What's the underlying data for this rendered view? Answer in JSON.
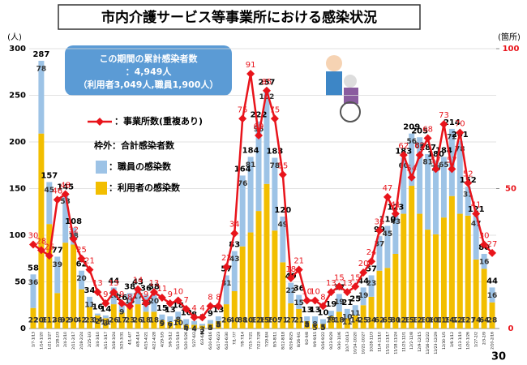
{
  "chart_data": {
    "type": "bar",
    "title": "市内介護サービス等事業所における感染状況",
    "y_label": "(人)",
    "y2_label": "(箇所)",
    "ylim": [
      0,
      300
    ],
    "yticks": [
      0,
      50,
      100,
      150,
      200,
      250,
      300
    ],
    "y2lim": [
      0,
      100
    ],
    "y2ticks": [
      0,
      50,
      100
    ],
    "categories": [
      "1/7-1/13",
      "1/14-1/20",
      "1/21-1/27",
      "1/28-2/3",
      "2/4-2/10",
      "2/11-2/17",
      "2/18-2/24",
      "2/25-3/3",
      "3/4-3/10",
      "3/11-3/17",
      "3/18-3/24",
      "3/25-3/31",
      "4/1-4/7",
      "4/8-4/14",
      "4/15-4/21",
      "4/22-4/28",
      "4/29-5/5",
      "5/6-5/12",
      "5/13-5/19",
      "5/20-5/26",
      "5/27-6/2",
      "6/3-6/9",
      "6/10-6/16",
      "6/17-6/23",
      "6/24-6/30",
      "7/1-7/7",
      "7/8-7/14",
      "7/15-7/21",
      "7/22-7/28",
      "7/29-8/4",
      "8/5-8/11",
      "8/12-8/18",
      "8/19-8/25",
      "8/26-9/1",
      "9/2-9/8",
      "9/9-9/15",
      "9/16-9/22",
      "9/23-9/29",
      "9/30-10/6",
      "10/7-10/13",
      "10/14-10/20",
      "10/21-10/27",
      "10/28-11/3",
      "11/4-11/10",
      "11/11-11/17",
      "11/18-11/24",
      "11/25-12/1",
      "12/2-12/8",
      "12/9-12/15",
      "12/16-12/22",
      "12/23-12/29",
      "12/30-1/5",
      "1/6-1/12",
      "1/13-1/19",
      "1/20-1/26",
      "1/27-2/2",
      "2/3-2/9",
      "2/10-2/16"
    ],
    "series": [
      {
        "name": "：利用者の感染数",
        "color": "#f2be00",
        "values": [
          22,
          209,
          112,
          38,
          92,
          90,
          42,
          23,
          14,
          11,
          26,
          17,
          23,
          26,
          18,
          18,
          9,
          7,
          10,
          4,
          4,
          3,
          5,
          8,
          26,
          40,
          88,
          103,
          126,
          155,
          105,
          71,
          27,
          21,
          8,
          5,
          5,
          13,
          18,
          11,
          14,
          25,
          34,
          62,
          65,
          80,
          123,
          153,
          123,
          106,
          101,
          119,
          142,
          123,
          121,
          74,
          64,
          28
        ]
      },
      {
        "name": "：職員の感染数",
        "color": "#9dc3e6",
        "values": [
          36,
          78,
          45,
          39,
          53,
          18,
          20,
          11,
          2,
          3,
          18,
          9,
          15,
          17,
          18,
          20,
          6,
          6,
          8,
          6,
          4,
          2,
          4,
          5,
          31,
          43,
          76,
          81,
          96,
          102,
          78,
          49,
          22,
          15,
          5,
          8,
          5,
          6,
          19,
          10,
          11,
          19,
          23,
          37,
          45,
          43,
          60,
          56,
          82,
          81,
          79,
          65,
          72,
          78,
          31,
          47,
          16,
          16
        ]
      },
      {
        "name": "：事業所数(重複あり)",
        "type": "line",
        "axis": "y2",
        "color": "#e8141b",
        "values": [
          30,
          28,
          26,
          46,
          48,
          32,
          25,
          21,
          13,
          9,
          13,
          9,
          8,
          14,
          9,
          13,
          11,
          9,
          10,
          7,
          4,
          4,
          8,
          8,
          22,
          34,
          75,
          91,
          69,
          85,
          75,
          55,
          18,
          21,
          10,
          10,
          8,
          13,
          15,
          13,
          15,
          20,
          24,
          35,
          47,
          41,
          62,
          54,
          62,
          68,
          57,
          73,
          57,
          70,
          52,
          41,
          30,
          27
        ]
      }
    ],
    "totals_legend": "枠外：合計感染者数",
    "totals": [
      58,
      287,
      157,
      77,
      145,
      108,
      62,
      34,
      16,
      14,
      44,
      26,
      38,
      43,
      36,
      38,
      15,
      13,
      18,
      10,
      8,
      5,
      9,
      13,
      57,
      83,
      164,
      184,
      222,
      257,
      183,
      120,
      49,
      36,
      13,
      13,
      10,
      19,
      37,
      21,
      25,
      44,
      57,
      99,
      110,
      123,
      183,
      209,
      205,
      187,
      180,
      184,
      214,
      201,
      152,
      121,
      80,
      44
    ],
    "info_box": [
      "この期間の累計感染者数",
      "：4,949人",
      "（利用者3,049人,職員1,900人）"
    ],
    "page_number": "30"
  }
}
